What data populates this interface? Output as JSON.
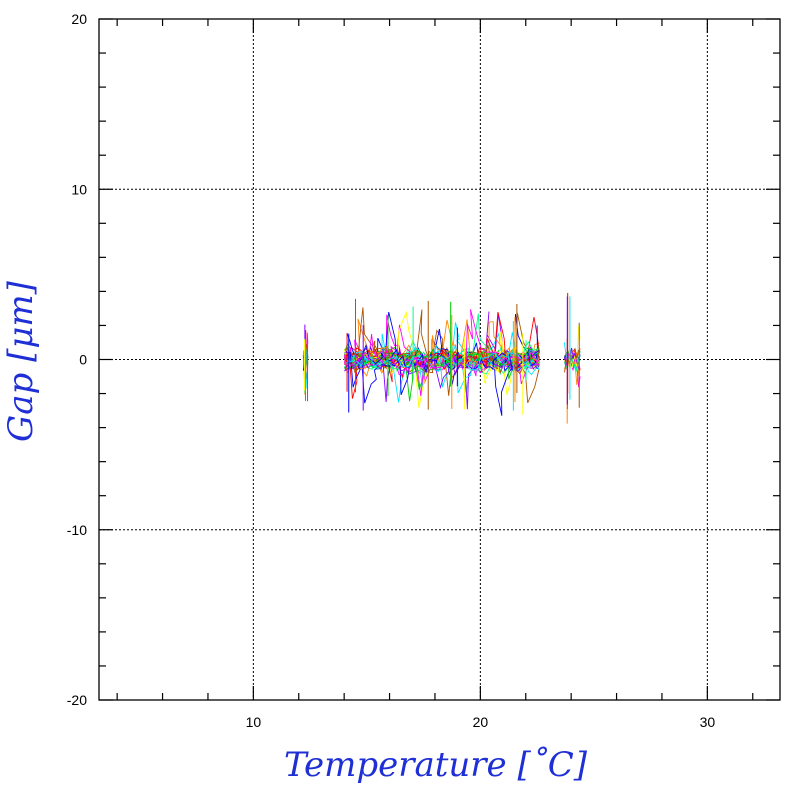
{
  "chart_data": {
    "type": "line",
    "title": "",
    "xlabel": "Temperature [˚C]",
    "ylabel": "Gap [μm]",
    "xlim": [
      3.2,
      33.2
    ],
    "ylim": [
      -20,
      20
    ],
    "x_ticks": [
      10,
      20,
      30
    ],
    "x_tick_labels": [
      "10",
      "20",
      "30"
    ],
    "y_ticks": [
      -20,
      -10,
      0,
      10,
      20
    ],
    "y_tick_labels": [
      "-20",
      "-10",
      "0",
      "10",
      "20"
    ],
    "x_minor_step": 2,
    "y_minor_step": 2,
    "grid": true,
    "grid_style": "dotted",
    "legend": "none",
    "clusters": [
      {
        "x_range": [
          12.2,
          12.4
        ],
        "y_range": [
          -2.5,
          2.4
        ]
      },
      {
        "x_range": [
          14.0,
          22.6
        ],
        "y_range": [
          -3.3,
          3.6
        ]
      },
      {
        "x_range": [
          23.7,
          24.4
        ],
        "y_range": [
          -4.0,
          4.0
        ]
      }
    ],
    "colors": [
      "#ff0000",
      "#00cc00",
      "#0000ff",
      "#00e5ff",
      "#ff00ff",
      "#ffff00",
      "#ff8800",
      "#8800ff",
      "#00ff88",
      "#aa5500"
    ]
  }
}
